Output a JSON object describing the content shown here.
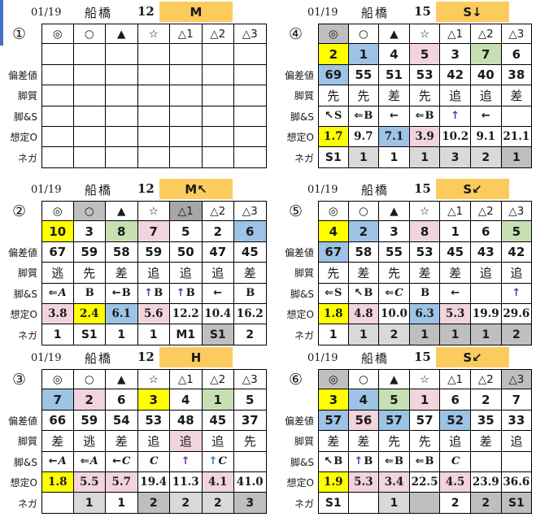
{
  "colors": {
    "Y": "#FFFF00",
    "B": "#9DC3E6",
    "G": "#C6E0B4",
    "P": "#F2D4DC",
    "L": "#D9D9D9",
    "D": "#BFBFBF",
    "X": "#A6A6A6",
    "amber": "#FBCB5E",
    "purple": "#7030A0",
    "blue_arrow": "#2E75B6",
    "text": "#1a1a1a",
    "edge": "#4472C4"
  },
  "row_labels": [
    "偏差値",
    "脚質",
    "脚&S",
    "想定O",
    "ネガ"
  ],
  "symbols": [
    "◎",
    "○",
    "▲",
    "☆",
    "△1",
    "△2",
    "△3"
  ],
  "tables": [
    {
      "id": "①",
      "date": "01/19",
      "venue": "船橋",
      "race": "12",
      "cls": "M",
      "sym_bg": [
        "",
        "",
        "",
        "",
        "",
        "",
        ""
      ],
      "num": {
        "v": [
          "",
          "",
          "",
          "",
          "",
          "",
          ""
        ],
        "bg": [
          "",
          "",
          "",
          "",
          "",
          "",
          ""
        ]
      },
      "dev": {
        "v": [
          "",
          "",
          "",
          "",
          "",
          "",
          ""
        ],
        "bg": [
          "",
          "",
          "",
          "",
          "",
          "",
          ""
        ]
      },
      "style": {
        "v": [
          "",
          "",
          "",
          "",
          "",
          "",
          ""
        ],
        "bg": [
          "",
          "",
          "",
          "",
          "",
          "",
          ""
        ]
      },
      "legs": [
        null,
        null,
        null,
        null,
        null,
        null,
        null
      ],
      "odds": {
        "v": [
          "",
          "",
          "",
          "",
          "",
          "",
          ""
        ],
        "bg": [
          "",
          "",
          "",
          "",
          "",
          "",
          ""
        ]
      },
      "neg": {
        "v": [
          "",
          "",
          "",
          "",
          "",
          "",
          ""
        ],
        "bg": [
          "",
          "",
          "",
          "",
          "",
          "",
          ""
        ]
      }
    },
    {
      "id": "②",
      "date": "01/19",
      "venue": "船橋",
      "race": "12",
      "cls": "M↖",
      "sym_bg": [
        "",
        "D",
        "",
        "",
        "X",
        "",
        ""
      ],
      "num": {
        "v": [
          "10",
          "3",
          "8",
          "7",
          "5",
          "2",
          "6"
        ],
        "bg": [
          "Y",
          "",
          "G",
          "P",
          "",
          "",
          "B"
        ]
      },
      "dev": {
        "v": [
          "67",
          "59",
          "58",
          "59",
          "50",
          "47",
          "45"
        ],
        "bg": [
          "",
          "",
          "",
          "",
          "",
          "",
          ""
        ]
      },
      "style": {
        "v": [
          "逃",
          "先",
          "差",
          "追",
          "追",
          "追",
          "差"
        ],
        "bg": [
          "",
          "",
          "",
          "",
          "",
          "",
          ""
        ]
      },
      "legs": [
        [
          "⇐",
          "A",
          "k"
        ],
        [
          "",
          "B",
          "k"
        ],
        [
          "←",
          "B",
          "k"
        ],
        [
          "↑",
          "B",
          "p"
        ],
        [
          "↑",
          "B",
          "p"
        ],
        [
          "←",
          "",
          "k"
        ],
        [
          "",
          "B",
          "k"
        ]
      ],
      "odds": {
        "v": [
          "3.8",
          "2.4",
          "6.1",
          "5.6",
          "12.2",
          "10.4",
          "16.2"
        ],
        "bg": [
          "P",
          "Y",
          "B",
          "P",
          "",
          "",
          ""
        ]
      },
      "neg": {
        "v": [
          "1",
          "S1",
          "1",
          "1",
          "M1",
          "S1",
          "2"
        ],
        "bg": [
          "",
          "",
          "",
          "",
          "",
          "D",
          ""
        ]
      }
    },
    {
      "id": "③",
      "date": "01/19",
      "venue": "船橋",
      "race": "12",
      "cls": "H",
      "sym_bg": [
        "",
        "",
        "",
        "",
        "",
        "",
        ""
      ],
      "num": {
        "v": [
          "7",
          "2",
          "6",
          "3",
          "4",
          "1",
          "5"
        ],
        "bg": [
          "B",
          "P",
          "",
          "Y",
          "",
          "G",
          ""
        ]
      },
      "dev": {
        "v": [
          "66",
          "59",
          "54",
          "53",
          "48",
          "45",
          "37"
        ],
        "bg": [
          "",
          "",
          "",
          "",
          "",
          "",
          ""
        ]
      },
      "style": {
        "v": [
          "差",
          "逃",
          "差",
          "追",
          "追",
          "追",
          "先"
        ],
        "bg": [
          "",
          "",
          "",
          "",
          "P",
          "",
          ""
        ]
      },
      "legs": [
        [
          "←",
          "A",
          "k"
        ],
        [
          "⇐",
          "A",
          "k"
        ],
        [
          "←",
          "C",
          "k"
        ],
        [
          "",
          "C",
          "k"
        ],
        [
          "↑",
          "",
          "p"
        ],
        [
          "↑",
          "C",
          "b"
        ],
        null
      ],
      "odds": {
        "v": [
          "1.8",
          "5.5",
          "5.7",
          "19.4",
          "11.3",
          "4.1",
          "41.0"
        ],
        "bg": [
          "Y",
          "P",
          "P",
          "",
          "",
          "P",
          ""
        ]
      },
      "neg": {
        "v": [
          "",
          "1",
          "1",
          "2",
          "2",
          "2",
          "3"
        ],
        "bg": [
          "",
          "L",
          "",
          "D",
          "L",
          "L",
          "D"
        ]
      }
    },
    {
      "id": "④",
      "date": "01/19",
      "venue": "船橋",
      "race": "15",
      "cls": "S↓",
      "sym_bg": [
        "D",
        "",
        "",
        "",
        "",
        "",
        ""
      ],
      "num": {
        "v": [
          "2",
          "1",
          "4",
          "5",
          "3",
          "7",
          "6"
        ],
        "bg": [
          "Y",
          "B",
          "",
          "P",
          "",
          "G",
          ""
        ]
      },
      "dev": {
        "v": [
          "69",
          "55",
          "51",
          "53",
          "42",
          "40",
          "38"
        ],
        "bg": [
          "B",
          "",
          "",
          "",
          "",
          "",
          ""
        ]
      },
      "style": {
        "v": [
          "先",
          "先",
          "差",
          "先",
          "追",
          "追",
          "差"
        ],
        "bg": [
          "",
          "",
          "",
          "",
          "",
          "",
          ""
        ]
      },
      "legs": [
        [
          "↖",
          "S",
          "k"
        ],
        [
          "⇐",
          "B",
          "k"
        ],
        [
          "←",
          "",
          "k"
        ],
        [
          "⇐",
          "B",
          "k"
        ],
        [
          "↑",
          "",
          "p"
        ],
        [
          "←",
          "",
          "k"
        ],
        null
      ],
      "odds": {
        "v": [
          "1.7",
          "9.7",
          "7.1",
          "3.9",
          "10.2",
          "9.1",
          "21.1"
        ],
        "bg": [
          "Y",
          "",
          "B",
          "P",
          "",
          "",
          ""
        ]
      },
      "neg": {
        "v": [
          "S1",
          "1",
          "1",
          "1",
          "3",
          "2",
          "1"
        ],
        "bg": [
          "",
          "L",
          "",
          "L",
          "L",
          "L",
          "D"
        ]
      }
    },
    {
      "id": "⑤",
      "date": "01/19",
      "venue": "船橋",
      "race": "15",
      "cls": "S↙",
      "sym_bg": [
        "",
        "",
        "",
        "",
        "",
        "",
        ""
      ],
      "num": {
        "v": [
          "4",
          "2",
          "3",
          "8",
          "1",
          "6",
          "5"
        ],
        "bg": [
          "Y",
          "B",
          "",
          "P",
          "",
          "",
          "G"
        ]
      },
      "dev": {
        "v": [
          "67",
          "58",
          "55",
          "53",
          "45",
          "43",
          "42"
        ],
        "bg": [
          "B",
          "",
          "",
          "",
          "",
          "",
          ""
        ]
      },
      "style": {
        "v": [
          "先",
          "差",
          "先",
          "差",
          "差",
          "追",
          "追"
        ],
        "bg": [
          "",
          "",
          "",
          "",
          "",
          "",
          ""
        ]
      },
      "legs": [
        [
          "⇐",
          "S",
          "k"
        ],
        [
          "↖",
          "B",
          "k"
        ],
        [
          "⇐",
          "C",
          "k"
        ],
        [
          "",
          "B",
          "k"
        ],
        [
          "←",
          "",
          "k"
        ],
        null,
        [
          "↑",
          "",
          "p"
        ]
      ],
      "odds": {
        "v": [
          "1.8",
          "4.8",
          "10.0",
          "6.3",
          "5.3",
          "19.9",
          "29.6"
        ],
        "bg": [
          "Y",
          "P",
          "",
          "B",
          "P",
          "",
          ""
        ]
      },
      "neg": {
        "v": [
          "1",
          "1",
          "2",
          "1",
          "1",
          "1",
          "2"
        ],
        "bg": [
          "",
          "L",
          "L",
          "D",
          "D",
          "D",
          "D"
        ]
      }
    },
    {
      "id": "⑥",
      "date": "01/19",
      "venue": "船橋",
      "race": "15",
      "cls": "S↙",
      "sym_bg": [
        "D",
        "",
        "",
        "",
        "",
        "",
        "D"
      ],
      "num": {
        "v": [
          "3",
          "4",
          "5",
          "1",
          "6",
          "2",
          "7"
        ],
        "bg": [
          "Y",
          "B",
          "G",
          "P",
          "",
          "",
          ""
        ]
      },
      "dev": {
        "v": [
          "57",
          "56",
          "57",
          "57",
          "52",
          "35",
          "33"
        ],
        "bg": [
          "B",
          "P",
          "B",
          "",
          "B",
          "",
          ""
        ]
      },
      "style": {
        "v": [
          "差",
          "差",
          "先",
          "先",
          "追",
          "差",
          "追"
        ],
        "bg": [
          "",
          "",
          "",
          "",
          "",
          "",
          ""
        ]
      },
      "legs": [
        [
          "↖",
          "B",
          "k"
        ],
        [
          "↑",
          "B",
          "p"
        ],
        [
          "⇐",
          "B",
          "k"
        ],
        [
          "⇐",
          "B",
          "k"
        ],
        [
          "",
          "C",
          "k"
        ],
        null,
        null
      ],
      "odds": {
        "v": [
          "1.9",
          "5.3",
          "3.4",
          "22.5",
          "4.5",
          "23.9",
          "36.6"
        ],
        "bg": [
          "Y",
          "P",
          "P",
          "",
          "P",
          "",
          ""
        ]
      },
      "neg": {
        "v": [
          "S1",
          "",
          "1",
          "",
          "2",
          "2",
          "S1"
        ],
        "bg": [
          "",
          "",
          "L",
          "D",
          "",
          "D",
          "D"
        ]
      }
    }
  ]
}
